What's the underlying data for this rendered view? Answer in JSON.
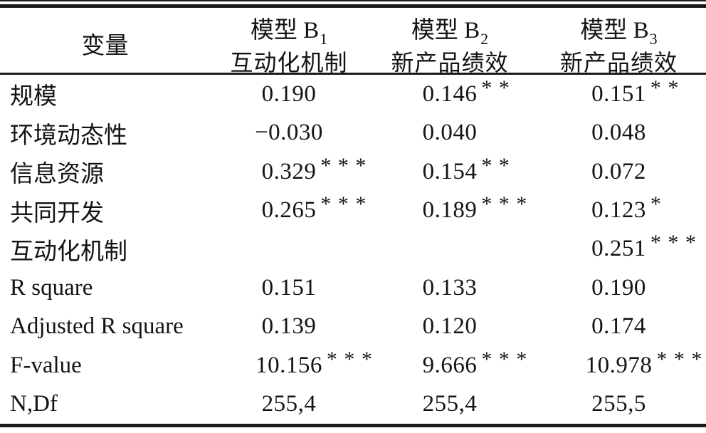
{
  "page": {
    "background_color": "#ffffff",
    "text_color": "#141414",
    "rule_color": "#1b1b1b"
  },
  "table": {
    "header": {
      "variable_label": "变量",
      "models": [
        {
          "title": "模型 B",
          "subscript": "1",
          "measure": "互动化机制"
        },
        {
          "title": "模型 B",
          "subscript": "2",
          "measure": "新产品绩效"
        },
        {
          "title": "模型 B",
          "subscript": "3",
          "measure": "新产品绩效"
        }
      ]
    },
    "rows": [
      {
        "label": "规模",
        "m1": "0.190",
        "m1s": "",
        "m2": "0.146",
        "m2s": "* *",
        "m3": "0.151",
        "m3s": "* *"
      },
      {
        "label": "环境动态性",
        "m1": "−0.030",
        "m1s": "",
        "m2": "0.040",
        "m2s": "",
        "m3": "0.048",
        "m3s": ""
      },
      {
        "label": "信息资源",
        "m1": "0.329",
        "m1s": "* * *",
        "m2": "0.154",
        "m2s": "* *",
        "m3": "0.072",
        "m3s": ""
      },
      {
        "label": "共同开发",
        "m1": "0.265",
        "m1s": "* * *",
        "m2": "0.189",
        "m2s": "* * *",
        "m3": "0.123",
        "m3s": "*"
      },
      {
        "label": "互动化机制",
        "m1": "",
        "m1s": "",
        "m2": "",
        "m2s": "",
        "m3": "0.251",
        "m3s": "* * *"
      },
      {
        "label": "R square",
        "m1": "0.151",
        "m1s": "",
        "m2": "0.133",
        "m2s": "",
        "m3": "0.190",
        "m3s": ""
      },
      {
        "label": "Adjusted R square",
        "m1": "0.139",
        "m1s": "",
        "m2": "0.120",
        "m2s": "",
        "m3": "0.174",
        "m3s": ""
      },
      {
        "label": "F-value",
        "m1": "10.156",
        "m1s": "* * *",
        "m2": "9.666",
        "m2s": "* * *",
        "m3": "10.978",
        "m3s": "* * *"
      },
      {
        "label": "N,Df",
        "m1": "255,4",
        "m1s": "",
        "m2": "255,4",
        "m2s": "",
        "m3": "255,5",
        "m3s": ""
      }
    ]
  }
}
